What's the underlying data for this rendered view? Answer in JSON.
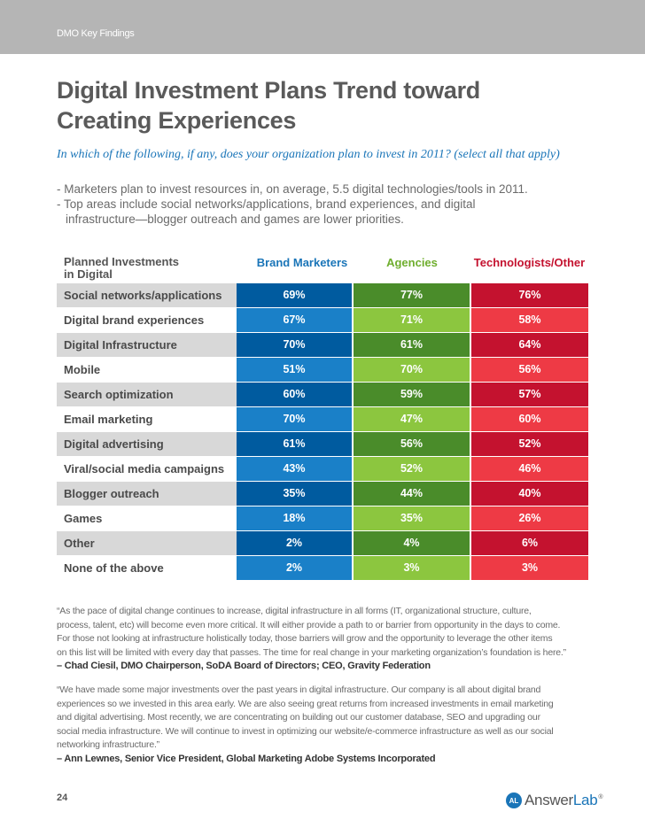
{
  "header": {
    "section": "DMO Key Findings"
  },
  "title": {
    "line1": "Digital Investment Plans Trend toward",
    "line2": "Creating Experiences"
  },
  "question": "In which of the following, if  any, does your organization plan to invest in 2011? (select all that apply)",
  "bullets": {
    "b1": "- Marketers plan to invest resources in, on average, 5.5 digital technologies/tools in 2011.",
    "b2": "- Top areas include social networks/applications, brand experiences, and digital",
    "b2_cont": "infrastructure—blogger outreach and games are lower priorities."
  },
  "table": {
    "headers": {
      "planned_line1": "Planned Investments",
      "planned_line2": "in Digital",
      "brand": "Brand Marketers",
      "agencies": "Agencies",
      "tech": "Technologists/Other"
    },
    "rows": [
      {
        "label": "Social networks/applications",
        "brand": "69%",
        "agencies": "77%",
        "tech": "76%"
      },
      {
        "label": "Digital brand experiences",
        "brand": "67%",
        "agencies": "71%",
        "tech": "58%"
      },
      {
        "label": "Digital Infrastructure",
        "brand": "70%",
        "agencies": "61%",
        "tech": "64%"
      },
      {
        "label": "Mobile",
        "brand": "51%",
        "agencies": "70%",
        "tech": "56%"
      },
      {
        "label": "Search optimization",
        "brand": "60%",
        "agencies": "59%",
        "tech": "57%"
      },
      {
        "label": "Email marketing",
        "brand": "70%",
        "agencies": "47%",
        "tech": "60%"
      },
      {
        "label": "Digital advertising",
        "brand": "61%",
        "agencies": "56%",
        "tech": "52%"
      },
      {
        "label": "Viral/social media campaigns",
        "brand": "43%",
        "agencies": "52%",
        "tech": "46%"
      },
      {
        "label": "Blogger outreach",
        "brand": "35%",
        "agencies": "44%",
        "tech": "40%"
      },
      {
        "label": "Games",
        "brand": "18%",
        "agencies": "35%",
        "tech": "26%"
      },
      {
        "label": "Other",
        "brand": "2%",
        "agencies": "4%",
        "tech": "6%"
      },
      {
        "label": "None of the above",
        "brand": "2%",
        "agencies": "3%",
        "tech": "3%"
      }
    ]
  },
  "quote1": {
    "line1": "“As the pace of digital change continues to increase, digital infrastructure in all forms  (IT, organizational structure, culture,",
    "line2": "process, talent, etc) will become even more critical. It will either provide a path to or barrier from opportunity in the days to come.",
    "line3": "For those not looking at infrastructure holistically today, those barriers will grow and the opportunity to leverage the other items",
    "line4": "on this list will be limited with every day that passes. The time for real change in your marketing organization’s foundation is here.”",
    "attribution": " – Chad Ciesil, DMO Chairperson, SoDA Board of Directors; CEO, Gravity Federation"
  },
  "quote2": {
    "line1": "“We have made some major investments over the past years in digital infrastructure. Our company is all about digital brand",
    "line2": "experiences so we invested in this area early. We are also seeing great returns from increased investments in email marketing",
    "line3": "and digital advertising. Most recently, we are concentrating on building out our customer database, SEO and upgrading our",
    "line4": "social media infrastructure. We will continue to invest in optimizing our website/e-commerce infrastructure as well as our social",
    "line5": "networking infrastructure.”",
    "attribution": "– Ann Lewnes, Senior Vice President, Global Marketing Adobe Systems Incorporated"
  },
  "footer": {
    "page_number": "24",
    "logo_mark": "AL",
    "logo_answer": "Answer",
    "logo_lab": "Lab",
    "logo_tm": "®"
  },
  "colors": {
    "brand_blue": "#005b9f",
    "agency_green": "#4a8c2a",
    "tech_red": "#c4122f"
  }
}
